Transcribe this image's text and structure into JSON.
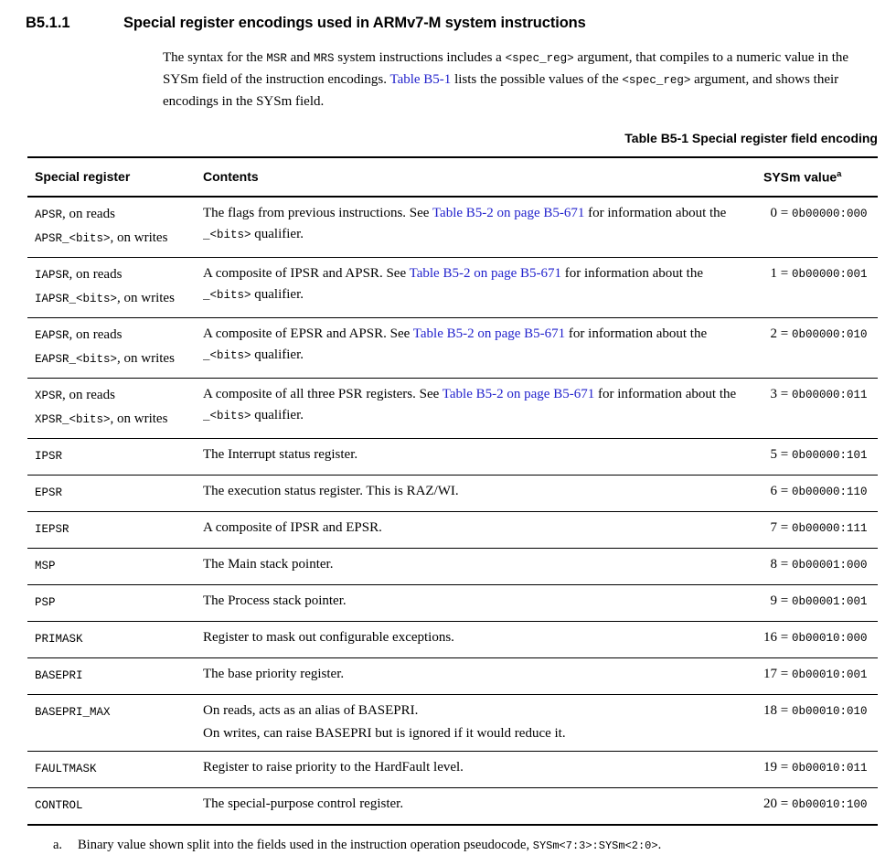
{
  "colors": {
    "link_blue": "#2222CC",
    "text": "#000000",
    "rule": "#000000"
  },
  "section": {
    "number": "B5.1.1",
    "title": "Special register encodings used in ARMv7-M system instructions"
  },
  "intro": {
    "segments": [
      {
        "t": "text",
        "s": "The syntax for the "
      },
      {
        "t": "mono",
        "s": "MSR"
      },
      {
        "t": "text",
        "s": " and "
      },
      {
        "t": "mono",
        "s": "MRS"
      },
      {
        "t": "text",
        "s": " system instructions includes a "
      },
      {
        "t": "mono",
        "s": "<spec_reg>"
      },
      {
        "t": "text",
        "s": " argument, that compiles to a numeric value in the SYSm field of the instruction encodings. "
      },
      {
        "t": "link",
        "s": "Table B5-1"
      },
      {
        "t": "text",
        "s": " lists the possible values of the "
      },
      {
        "t": "mono",
        "s": "<spec_reg>"
      },
      {
        "t": "text",
        "s": " argument, and shows their encodings in the SYSm field."
      }
    ]
  },
  "table": {
    "caption": "Table B5-1 Special register field encoding",
    "headers": {
      "register": "Special register",
      "contents": "Contents",
      "sysm": "SYSm value",
      "sysm_marker": "a"
    },
    "rows": [
      {
        "register": [
          [
            {
              "t": "mono",
              "s": "APSR"
            },
            {
              "t": "text",
              "s": ", on reads"
            }
          ],
          [
            {
              "t": "mono",
              "s": "APSR_<bits>"
            },
            {
              "t": "text",
              "s": ", on writes"
            }
          ]
        ],
        "contents": [
          [
            {
              "t": "text",
              "s": "The flags from previous instructions. See "
            },
            {
              "t": "link",
              "s": "Table B5-2 on page B5-671"
            },
            {
              "t": "text",
              "s": " for information about the "
            },
            {
              "t": "mono",
              "s": "_<bits>"
            },
            {
              "t": "text",
              "s": " qualifier."
            }
          ]
        ],
        "sysm": [
          {
            "t": "num",
            "s": "0"
          },
          {
            "t": "text",
            "s": " = "
          },
          {
            "t": "mono",
            "s": "0b00000:000"
          }
        ]
      },
      {
        "register": [
          [
            {
              "t": "mono",
              "s": "IAPSR"
            },
            {
              "t": "text",
              "s": ", on reads"
            }
          ],
          [
            {
              "t": "mono",
              "s": "IAPSR_<bits>"
            },
            {
              "t": "text",
              "s": ", on writes"
            }
          ]
        ],
        "contents": [
          [
            {
              "t": "text",
              "s": "A composite of IPSR and APSR. See "
            },
            {
              "t": "link",
              "s": "Table B5-2 on page B5-671"
            },
            {
              "t": "text",
              "s": " for information about the "
            },
            {
              "t": "mono",
              "s": "_<bits>"
            },
            {
              "t": "text",
              "s": " qualifier."
            }
          ]
        ],
        "sysm": [
          {
            "t": "num",
            "s": "1"
          },
          {
            "t": "text",
            "s": " = "
          },
          {
            "t": "mono",
            "s": "0b00000:001"
          }
        ]
      },
      {
        "register": [
          [
            {
              "t": "mono",
              "s": "EAPSR"
            },
            {
              "t": "text",
              "s": ", on reads"
            }
          ],
          [
            {
              "t": "mono",
              "s": "EAPSR_<bits>"
            },
            {
              "t": "text",
              "s": ", on writes"
            }
          ]
        ],
        "contents": [
          [
            {
              "t": "text",
              "s": "A composite of EPSR and APSR. See "
            },
            {
              "t": "link",
              "s": "Table B5-2 on page B5-671"
            },
            {
              "t": "text",
              "s": " for information about the "
            },
            {
              "t": "mono",
              "s": "_<bits>"
            },
            {
              "t": "text",
              "s": " qualifier."
            }
          ]
        ],
        "sysm": [
          {
            "t": "num",
            "s": "2"
          },
          {
            "t": "text",
            "s": " = "
          },
          {
            "t": "mono",
            "s": "0b00000:010"
          }
        ]
      },
      {
        "register": [
          [
            {
              "t": "mono",
              "s": "XPSR"
            },
            {
              "t": "text",
              "s": ", on reads"
            }
          ],
          [
            {
              "t": "mono",
              "s": "XPSR_<bits>"
            },
            {
              "t": "text",
              "s": ", on writes"
            }
          ]
        ],
        "contents": [
          [
            {
              "t": "text",
              "s": "A composite of all three PSR registers. See "
            },
            {
              "t": "link",
              "s": "Table B5-2 on page B5-671"
            },
            {
              "t": "text",
              "s": " for information about the "
            },
            {
              "t": "mono",
              "s": "_<bits>"
            },
            {
              "t": "text",
              "s": " qualifier."
            }
          ]
        ],
        "sysm": [
          {
            "t": "num",
            "s": "3"
          },
          {
            "t": "text",
            "s": " = "
          },
          {
            "t": "mono",
            "s": "0b00000:011"
          }
        ]
      },
      {
        "register": [
          [
            {
              "t": "mono",
              "s": "IPSR"
            }
          ]
        ],
        "contents": [
          [
            {
              "t": "text",
              "s": "The Interrupt status register."
            }
          ]
        ],
        "sysm": [
          {
            "t": "num",
            "s": "5"
          },
          {
            "t": "text",
            "s": " = "
          },
          {
            "t": "mono",
            "s": "0b00000:101"
          }
        ]
      },
      {
        "register": [
          [
            {
              "t": "mono",
              "s": "EPSR"
            }
          ]
        ],
        "contents": [
          [
            {
              "t": "text",
              "s": "The execution status register. This is RAZ/WI."
            }
          ]
        ],
        "sysm": [
          {
            "t": "num",
            "s": "6"
          },
          {
            "t": "text",
            "s": " = "
          },
          {
            "t": "mono",
            "s": "0b00000:110"
          }
        ]
      },
      {
        "register": [
          [
            {
              "t": "mono",
              "s": "IEPSR"
            }
          ]
        ],
        "contents": [
          [
            {
              "t": "text",
              "s": "A composite of IPSR and EPSR."
            }
          ]
        ],
        "sysm": [
          {
            "t": "num",
            "s": "7"
          },
          {
            "t": "text",
            "s": " = "
          },
          {
            "t": "mono",
            "s": "0b00000:111"
          }
        ]
      },
      {
        "register": [
          [
            {
              "t": "mono",
              "s": "MSP"
            }
          ]
        ],
        "contents": [
          [
            {
              "t": "text",
              "s": "The Main stack pointer."
            }
          ]
        ],
        "sysm": [
          {
            "t": "num",
            "s": "8"
          },
          {
            "t": "text",
            "s": " = "
          },
          {
            "t": "mono",
            "s": "0b00001:000"
          }
        ]
      },
      {
        "register": [
          [
            {
              "t": "mono",
              "s": "PSP"
            }
          ]
        ],
        "contents": [
          [
            {
              "t": "text",
              "s": "The Process stack pointer."
            }
          ]
        ],
        "sysm": [
          {
            "t": "num",
            "s": "9"
          },
          {
            "t": "text",
            "s": " = "
          },
          {
            "t": "mono",
            "s": "0b00001:001"
          }
        ]
      },
      {
        "register": [
          [
            {
              "t": "mono",
              "s": "PRIMASK"
            }
          ]
        ],
        "contents": [
          [
            {
              "t": "text",
              "s": "Register to mask out configurable exceptions."
            }
          ]
        ],
        "sysm": [
          {
            "t": "num",
            "s": "16"
          },
          {
            "t": "text",
            "s": " = "
          },
          {
            "t": "mono",
            "s": "0b00010:000"
          }
        ]
      },
      {
        "register": [
          [
            {
              "t": "mono",
              "s": "BASEPRI"
            }
          ]
        ],
        "contents": [
          [
            {
              "t": "text",
              "s": "The base priority register."
            }
          ]
        ],
        "sysm": [
          {
            "t": "num",
            "s": "17"
          },
          {
            "t": "text",
            "s": " = "
          },
          {
            "t": "mono",
            "s": "0b00010:001"
          }
        ]
      },
      {
        "register": [
          [
            {
              "t": "mono",
              "s": "BASEPRI_MAX"
            }
          ]
        ],
        "contents": [
          [
            {
              "t": "text",
              "s": "On reads, acts as an alias of BASEPRI."
            }
          ],
          [
            {
              "t": "text",
              "s": "On writes, can raise BASEPRI but is ignored if it would reduce it."
            }
          ]
        ],
        "sysm": [
          {
            "t": "num",
            "s": "18"
          },
          {
            "t": "text",
            "s": " = "
          },
          {
            "t": "mono",
            "s": "0b00010:010"
          }
        ]
      },
      {
        "register": [
          [
            {
              "t": "mono",
              "s": "FAULTMASK"
            }
          ]
        ],
        "contents": [
          [
            {
              "t": "text",
              "s": "Register to raise priority to the HardFault level."
            }
          ]
        ],
        "sysm": [
          {
            "t": "num",
            "s": "19"
          },
          {
            "t": "text",
            "s": " = "
          },
          {
            "t": "mono",
            "s": "0b00010:011"
          }
        ]
      },
      {
        "register": [
          [
            {
              "t": "mono",
              "s": "CONTROL"
            }
          ]
        ],
        "contents": [
          [
            {
              "t": "text",
              "s": "The special-purpose control register."
            }
          ]
        ],
        "sysm": [
          {
            "t": "num",
            "s": "20"
          },
          {
            "t": "text",
            "s": " = "
          },
          {
            "t": "mono",
            "s": "0b00010:100"
          }
        ]
      }
    ],
    "footnote": {
      "marker": "a.",
      "segments": [
        {
          "t": "text",
          "s": "Binary value shown split into the fields used in the instruction operation pseudocode, "
        },
        {
          "t": "mono",
          "s": "SYSm<7:3>:SYSm<2:0>"
        },
        {
          "t": "text",
          "s": "."
        }
      ]
    }
  }
}
